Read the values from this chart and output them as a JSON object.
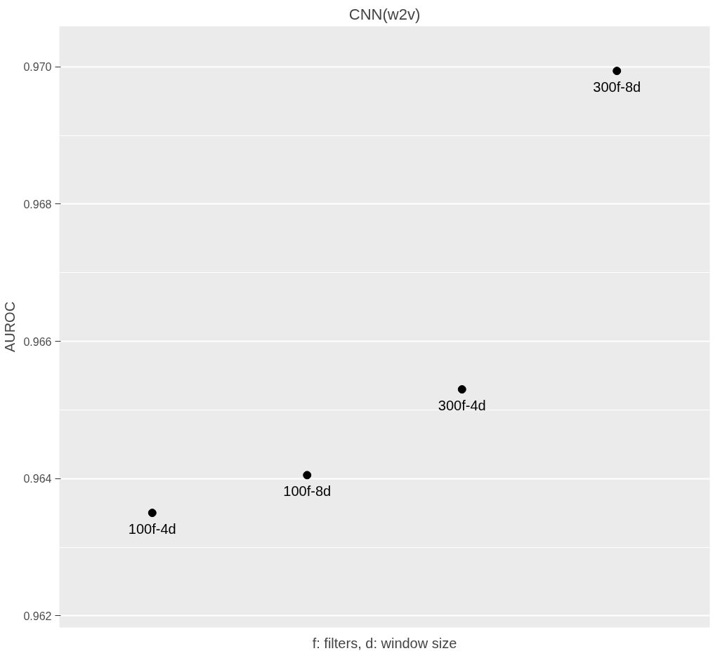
{
  "chart_data": {
    "type": "scatter",
    "title": "CNN(w2v)",
    "xlabel": "f: filters, d: window size",
    "ylabel": "AUROC",
    "categories": [
      null,
      null,
      null,
      null
    ],
    "series": [
      {
        "color": "#000000",
        "values": [
          0.9635,
          0.96405,
          0.9653,
          0.96994
        ],
        "value_labels": [
          "100f-4d",
          "100f-8d",
          "300f-4d",
          "300f-8d"
        ]
      }
    ],
    "ylim": [
      0.96183,
      0.97059
    ],
    "yticks": [
      0.962,
      0.964,
      0.966,
      0.968,
      {
        "value": 0.97,
        "label": "0.970"
      }
    ],
    "grid": "y",
    "marker": "circle"
  }
}
